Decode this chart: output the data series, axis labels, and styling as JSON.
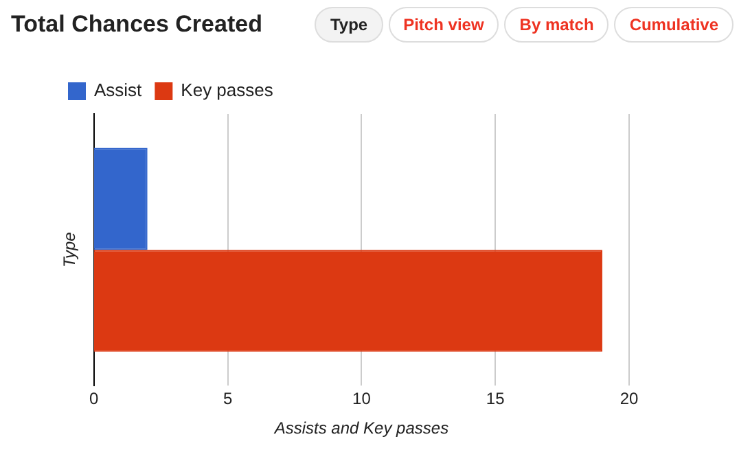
{
  "chart_data": {
    "type": "bar",
    "orientation": "horizontal",
    "title": "Total Chances Created",
    "xlabel": "Assists and Key passes",
    "ylabel": "Type",
    "categories": [
      null
    ],
    "series": [
      {
        "name": "Assist",
        "color": "#3366cc",
        "values": [
          2
        ]
      },
      {
        "name": "Key passes",
        "color": "#dc3912",
        "values": [
          19
        ]
      }
    ],
    "xlim": [
      0,
      20
    ],
    "xticks": [
      0,
      5,
      10,
      15,
      20
    ],
    "grid": "x",
    "legend": "top left",
    "annotations": [
      "Type",
      "Pitch view",
      "By match",
      "Cumulative"
    ]
  }
}
